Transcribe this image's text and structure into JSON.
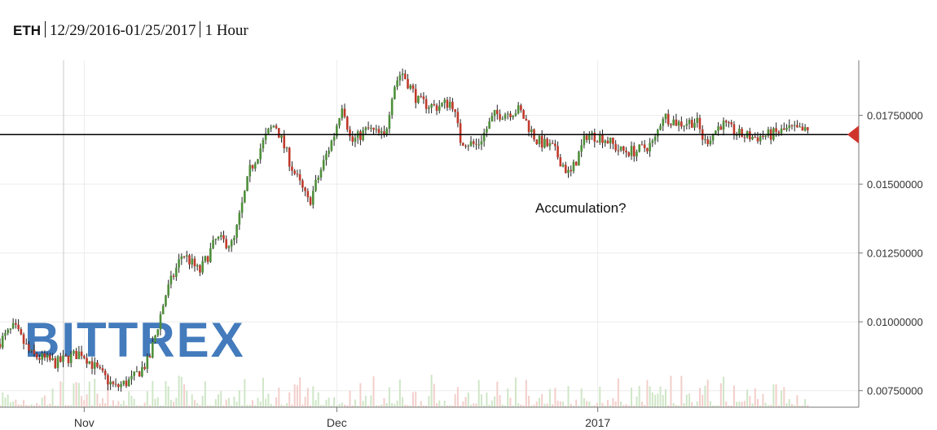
{
  "header": {
    "symbol": "ETH",
    "date_range": "12/29/2016-01/25/2017",
    "interval": "1 Hour"
  },
  "watermark": {
    "text": "BITTREX",
    "color": "#2f6db5"
  },
  "colors": {
    "up": "#4e8f3a",
    "down": "#c0392b",
    "wick": "#222222",
    "ref_line": "#000000",
    "marker": "#d0352b"
  },
  "chart_data": {
    "type": "candlestick",
    "x_tick_labels": [
      "Nov",
      "Dec",
      "2017"
    ],
    "y_tick_labels": [
      "0.00750000",
      "0.01000000",
      "0.01250000",
      "0.01500000",
      "0.01750000"
    ],
    "y_ticks": [
      0.0075,
      0.01,
      0.0125,
      0.015,
      0.0175
    ],
    "ylim": [
      0.0069,
      0.0195
    ],
    "x_domain": [
      "2016-10-22",
      "2017-02-01"
    ],
    "x_ticks": [
      "2016-11-01",
      "2016-12-01",
      "2017-01-01"
    ],
    "reference_line": 0.0168,
    "annotation": "Accumulation?",
    "price_path": [
      [
        "2016-10-22",
        0.0092
      ],
      [
        "2016-10-24",
        0.0098
      ],
      [
        "2016-10-26",
        0.0088
      ],
      [
        "2016-10-29",
        0.0085
      ],
      [
        "2016-11-01",
        0.0089
      ],
      [
        "2016-11-03",
        0.0082
      ],
      [
        "2016-11-05",
        0.0076
      ],
      [
        "2016-11-07",
        0.0079
      ],
      [
        "2016-11-09",
        0.0086
      ],
      [
        "2016-11-11",
        0.011
      ],
      [
        "2016-11-13",
        0.0125
      ],
      [
        "2016-11-15",
        0.0118
      ],
      [
        "2016-11-17",
        0.013
      ],
      [
        "2016-11-19",
        0.0128
      ],
      [
        "2016-11-21",
        0.0155
      ],
      [
        "2016-11-23",
        0.0168
      ],
      [
        "2016-11-24",
        0.0172
      ],
      [
        "2016-11-26",
        0.0156
      ],
      [
        "2016-11-28",
        0.0143
      ],
      [
        "2016-11-30",
        0.016
      ],
      [
        "2016-12-01",
        0.0168
      ],
      [
        "2016-12-02",
        0.018
      ],
      [
        "2016-12-03",
        0.0165
      ],
      [
        "2016-12-05",
        0.017
      ],
      [
        "2016-12-07",
        0.0167
      ],
      [
        "2016-12-08",
        0.0185
      ],
      [
        "2016-12-09",
        0.0191
      ],
      [
        "2016-12-11",
        0.018
      ],
      [
        "2016-12-13",
        0.0178
      ],
      [
        "2016-12-15",
        0.018
      ],
      [
        "2016-12-16",
        0.0166
      ],
      [
        "2016-12-18",
        0.0164
      ],
      [
        "2016-12-20",
        0.0175
      ],
      [
        "2016-12-23",
        0.0177
      ],
      [
        "2016-12-25",
        0.0166
      ],
      [
        "2016-12-27",
        0.0163
      ],
      [
        "2016-12-29",
        0.0153
      ],
      [
        "2016-12-31",
        0.0168
      ],
      [
        "2017-01-02",
        0.0167
      ],
      [
        "2017-01-04",
        0.0162
      ],
      [
        "2017-01-06",
        0.0162
      ],
      [
        "2017-01-08",
        0.0165
      ],
      [
        "2017-01-09",
        0.0175
      ],
      [
        "2017-01-11",
        0.0172
      ],
      [
        "2017-01-13",
        0.0173
      ],
      [
        "2017-01-14",
        0.0165
      ],
      [
        "2017-01-16",
        0.0172
      ],
      [
        "2017-01-18",
        0.0168
      ],
      [
        "2017-01-20",
        0.0167
      ],
      [
        "2017-01-22",
        0.0168
      ],
      [
        "2017-01-24",
        0.017
      ],
      [
        "2017-01-26",
        0.0169
      ]
    ],
    "volume_note": "faint volume bars along bottom, mostly small"
  }
}
